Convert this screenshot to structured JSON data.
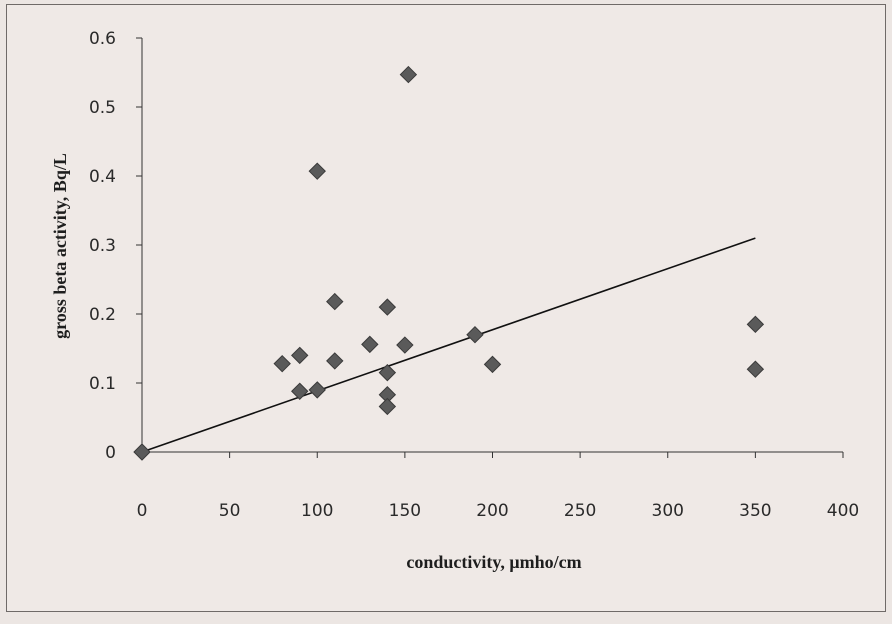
{
  "chart_data": {
    "type": "scatter",
    "title": "",
    "xlabel": "conductivity, μmho/cm",
    "ylabel": "gross beta activity, Bq/L",
    "xlim": [
      0,
      400
    ],
    "ylim": [
      0,
      0.6
    ],
    "x_ticks": [
      "0",
      "50",
      "100",
      "150",
      "200",
      "250",
      "300",
      "350",
      "400"
    ],
    "y_ticks": [
      "0",
      "0.1",
      "0.2",
      "0.3",
      "0.4",
      "0.5",
      "0.6"
    ],
    "points": [
      {
        "x": 0,
        "y": 0
      },
      {
        "x": 80,
        "y": 0.128
      },
      {
        "x": 90,
        "y": 0.14
      },
      {
        "x": 90,
        "y": 0.088
      },
      {
        "x": 100,
        "y": 0.09
      },
      {
        "x": 100,
        "y": 0.407
      },
      {
        "x": 110,
        "y": 0.218
      },
      {
        "x": 110,
        "y": 0.132
      },
      {
        "x": 130,
        "y": 0.156
      },
      {
        "x": 140,
        "y": 0.21
      },
      {
        "x": 140,
        "y": 0.115
      },
      {
        "x": 140,
        "y": 0.083
      },
      {
        "x": 140,
        "y": 0.066
      },
      {
        "x": 150,
        "y": 0.155
      },
      {
        "x": 152,
        "y": 0.547
      },
      {
        "x": 190,
        "y": 0.17
      },
      {
        "x": 200,
        "y": 0.127
      },
      {
        "x": 350,
        "y": 0.185
      },
      {
        "x": 350,
        "y": 0.12
      }
    ],
    "trendline": {
      "x": [
        0,
        350
      ],
      "y": [
        0,
        0.31
      ]
    },
    "marker": "diamond",
    "marker_color": "#5a5a5a",
    "line_color": "#111111",
    "grid": false,
    "legend": "none"
  }
}
